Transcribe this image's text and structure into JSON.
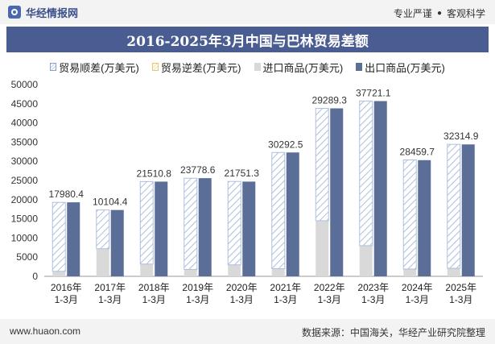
{
  "brand": {
    "name": "华经情报网"
  },
  "slogan": {
    "left": "专业严谨",
    "dot": "●",
    "right": "客观科学"
  },
  "footer": {
    "url": "www.huaon.com",
    "source": "数据来源：中国海关，华经产业研究院整理"
  },
  "colors": {
    "export": "#5b6e98",
    "import": "#d9d9d9",
    "surplus_stripe": "#aebfdc",
    "deficit_stripe": "#e6c86e",
    "title_bg": "#4a5d93"
  },
  "chart_data": {
    "type": "bar",
    "title": "2016-2025年3月中国与巴林贸易差额",
    "categories": [
      [
        "2016年",
        "1-3月"
      ],
      [
        "2017年",
        "1-3月"
      ],
      [
        "2018年",
        "1-3月"
      ],
      [
        "2019年",
        "1-3月"
      ],
      [
        "2020年",
        "1-3月"
      ],
      [
        "2021年",
        "1-3月"
      ],
      [
        "2022年",
        "1-3月"
      ],
      [
        "2023年",
        "1-3月"
      ],
      [
        "2024年",
        "1-3月"
      ],
      [
        "2025年",
        "1-3月"
      ]
    ],
    "ylim": [
      0,
      50000
    ],
    "yticks": [
      0,
      5000,
      10000,
      15000,
      20000,
      25000,
      30000,
      35000,
      40000,
      45000,
      50000
    ],
    "legend": [
      "贸易顺差(万美元)",
      "贸易逆差(万美元)",
      "进口商品(万美元)",
      "出口商品(万美元)"
    ],
    "series": [
      {
        "name": "贸易顺差(万美元)",
        "values": [
          17980.4,
          10104.4,
          21510.8,
          23778.6,
          21751.3,
          30292.5,
          29289.3,
          37721.1,
          28459.7,
          32314.9
        ]
      },
      {
        "name": "贸易逆差(万美元)",
        "values": [
          0,
          0,
          0,
          0,
          0,
          0,
          0,
          0,
          0,
          0
        ]
      },
      {
        "name": "进口商品(万美元)",
        "values": [
          1300,
          7200,
          3200,
          1800,
          3000,
          2000,
          14500,
          8000,
          1900,
          2100
        ]
      },
      {
        "name": "出口商品(万美元)",
        "values": [
          19300,
          17300,
          24700,
          25600,
          24700,
          32300,
          43800,
          45700,
          30300,
          34400
        ]
      }
    ],
    "value_labels": [
      "17980.4",
      "10104.4",
      "21510.8",
      "23778.6",
      "21751.3",
      "30292.5",
      "29289.3",
      "37721.1",
      "28459.7",
      "32314.9"
    ]
  }
}
